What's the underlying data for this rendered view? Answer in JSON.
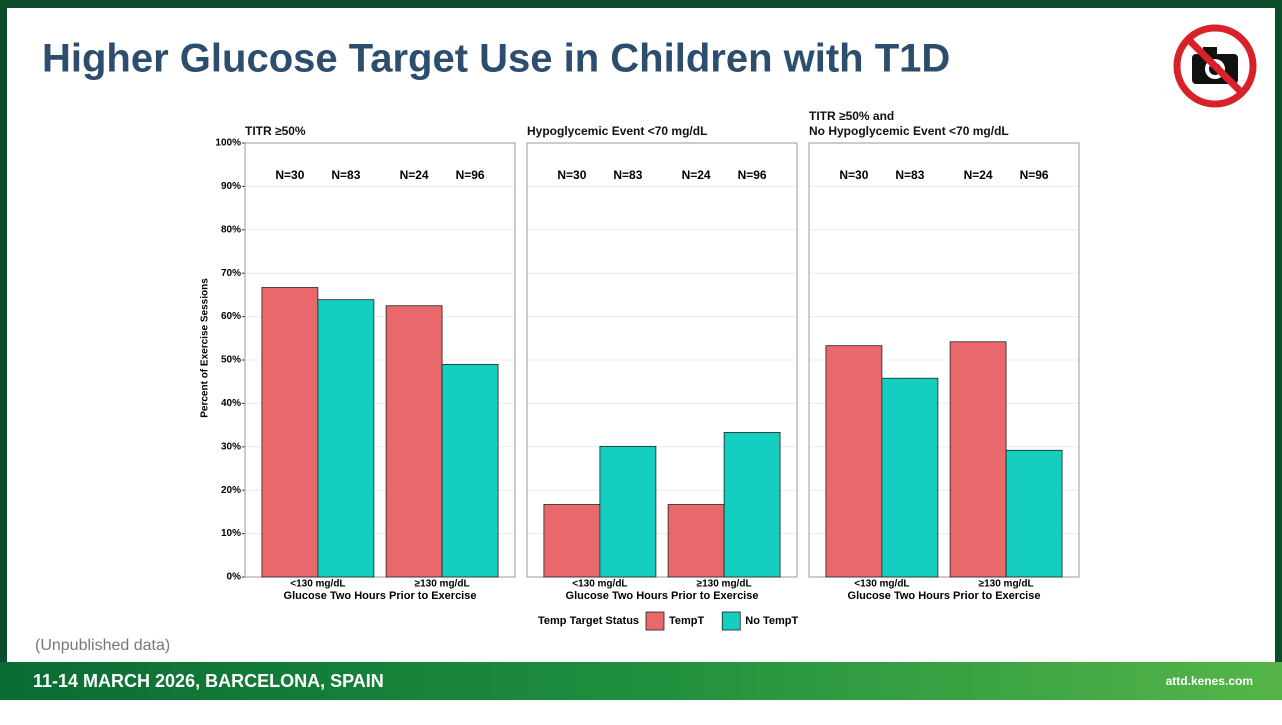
{
  "slide_title": "Higher Glucose Target Use in Children with T1D",
  "y_axis_label": "Percent of Exercise Sessions",
  "legend_title": "Temp Target Status",
  "footnote": "(Unpublished data)",
  "footer": {
    "event": "11-14 MARCH 2026, BARCELONA, SPAIN",
    "website": "attd.kenes.com"
  },
  "chart_data": [
    {
      "type": "bar",
      "title": "TITR ≥50%",
      "x_label": "Glucose Two Hours Prior to Exercise",
      "categories": [
        "<130 mg/dL",
        "≥130 mg/dL"
      ],
      "annotations": [
        "N=30",
        "N=83",
        "N=24",
        "N=96"
      ],
      "series": [
        {
          "name": "TempT",
          "color": "#e8686b",
          "values": [
            66.7,
            62.5
          ]
        },
        {
          "name": "No TempT",
          "color": "#14cfbf",
          "values": [
            63.9,
            49.0
          ]
        }
      ],
      "ylim": [
        0,
        100
      ],
      "yticks": [
        {
          "value": 0,
          "label": "0%"
        },
        {
          "value": 10,
          "label": "10%"
        },
        {
          "value": 20,
          "label": "20%"
        },
        {
          "value": 30,
          "label": "30%"
        },
        {
          "value": 40,
          "label": "40%"
        },
        {
          "value": 50,
          "label": "50%"
        },
        {
          "value": 60,
          "label": "60%"
        },
        {
          "value": 70,
          "label": "70%"
        },
        {
          "value": 80,
          "label": "80%"
        },
        {
          "value": 90,
          "label": "90%"
        },
        {
          "value": 100,
          "label": "100%"
        }
      ],
      "grid": true
    },
    {
      "type": "bar",
      "title": "Hypoglycemic Event <70 mg/dL",
      "x_label": "Glucose Two Hours Prior to Exercise",
      "categories": [
        "<130 mg/dL",
        "≥130 mg/dL"
      ],
      "annotations": [
        "N=30",
        "N=83",
        "N=24",
        "N=96"
      ],
      "series": [
        {
          "name": "TempT",
          "color": "#e8686b",
          "values": [
            16.7,
            16.7
          ]
        },
        {
          "name": "No TempT",
          "color": "#14cfbf",
          "values": [
            30.1,
            33.3
          ]
        }
      ],
      "ylim": [
        0,
        100
      ],
      "yticks": [
        0,
        10,
        20,
        30,
        40,
        50,
        60,
        70,
        80,
        90,
        100
      ],
      "grid": true
    },
    {
      "type": "bar",
      "title": "TITR ≥50% and\nNo Hypoglycemic Event <70 mg/dL",
      "x_label": "Glucose Two Hours Prior to Exercise",
      "categories": [
        "<130 mg/dL",
        "≥130 mg/dL"
      ],
      "annotations": [
        "N=30",
        "N=83",
        "N=24",
        "N=96"
      ],
      "series": [
        {
          "name": "TempT",
          "color": "#e8686b",
          "values": [
            53.3,
            54.2
          ]
        },
        {
          "name": "No TempT",
          "color": "#14cfbf",
          "values": [
            45.8,
            29.2
          ]
        }
      ],
      "ylim": [
        0,
        100
      ],
      "yticks": [
        0,
        10,
        20,
        30,
        40,
        50,
        60,
        70,
        80,
        90,
        100
      ],
      "grid": true
    }
  ]
}
